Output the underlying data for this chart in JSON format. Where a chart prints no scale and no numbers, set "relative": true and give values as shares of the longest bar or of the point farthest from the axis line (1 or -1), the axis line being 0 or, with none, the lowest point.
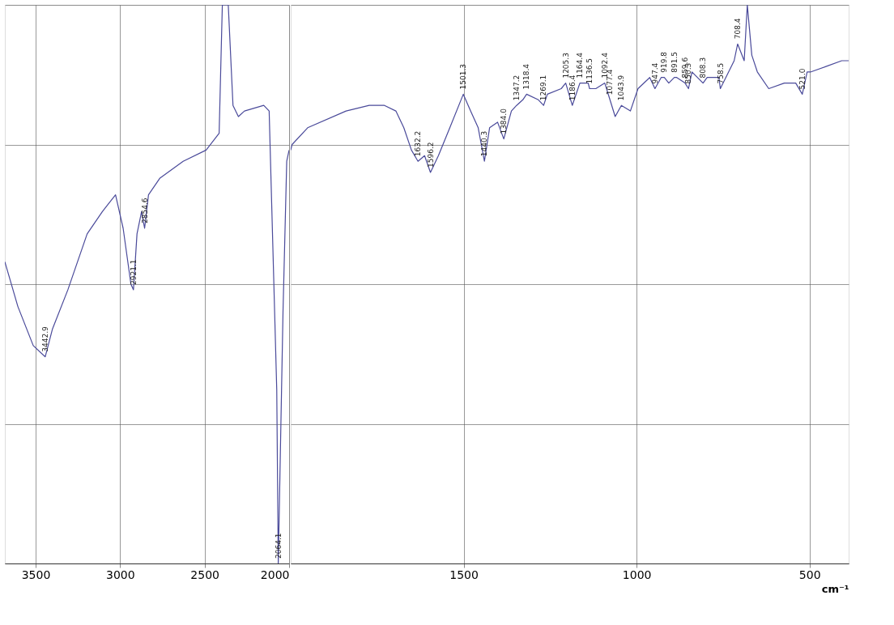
{
  "chart_data": [
    {
      "type": "line",
      "relative": true,
      "xlim": [
        3682,
        2000
      ],
      "xticks": [
        3500,
        3000,
        2500,
        2000
      ],
      "grid": true,
      "marker": "none",
      "line_style": "solid",
      "series": [
        {
          "color": "#4a4a9a",
          "x": [
            3682,
            3605,
            3514,
            3443,
            3400,
            3309,
            3195,
            3105,
            3027,
            2982,
            2936,
            2921,
            2900,
            2873,
            2855,
            2832,
            2764,
            2627,
            2491,
            2414,
            2395,
            2360,
            2332,
            2300,
            2264,
            2150,
            2118,
            2073,
            2064,
            2036,
            2014,
            2000
          ],
          "values": [
            0.54,
            0.46,
            0.39,
            0.37,
            0.42,
            0.49,
            0.59,
            0.63,
            0.66,
            0.6,
            0.5,
            0.49,
            0.59,
            0.63,
            0.6,
            0.66,
            0.69,
            0.72,
            0.74,
            0.77,
            1.0,
            1.0,
            0.82,
            0.8,
            0.81,
            0.82,
            0.81,
            0.31,
            0.0,
            0.45,
            0.72,
            0.74
          ]
        }
      ],
      "annotations": [
        {
          "text": "3442.9",
          "x": 3443,
          "y": 0.37
        },
        {
          "text": "2921.1",
          "x": 2921,
          "y": 0.49
        },
        {
          "text": "2854.6",
          "x": 2855,
          "y": 0.6
        },
        {
          "text": "2064.1",
          "x": 2064,
          "y": 0.0
        }
      ]
    },
    {
      "type": "line",
      "relative": true,
      "xlabel": "cm⁻¹",
      "xlim": [
        2000,
        387
      ],
      "xticks": [
        1500,
        1000,
        500
      ],
      "grid": true,
      "marker": "none",
      "line_style": "solid",
      "series": [
        {
          "color": "#4a4a9a",
          "x": [
            2000,
            1996,
            1951,
            1840,
            1773,
            1729,
            1696,
            1673,
            1651,
            1632,
            1613,
            1596,
            1573,
            1540,
            1501,
            1480,
            1458,
            1440,
            1425,
            1402,
            1384,
            1362,
            1347,
            1329,
            1318,
            1284,
            1269,
            1258,
            1218,
            1205,
            1186,
            1164,
            1140,
            1136,
            1118,
            1092,
            1077,
            1062,
            1044,
            1018,
            996,
            962,
            947,
            929,
            920,
            907,
            891,
            884,
            860,
            850,
            840,
            808,
            796,
            762,
            758,
            718,
            708,
            689,
            680,
            667,
            651,
            618,
            573,
            540,
            521,
            507,
            496,
            451,
            407,
            387
          ],
          "values": [
            0.74,
            0.75,
            0.78,
            0.81,
            0.82,
            0.82,
            0.81,
            0.78,
            0.74,
            0.72,
            0.73,
            0.7,
            0.73,
            0.78,
            0.84,
            0.81,
            0.78,
            0.72,
            0.78,
            0.79,
            0.76,
            0.81,
            0.82,
            0.83,
            0.84,
            0.83,
            0.82,
            0.84,
            0.85,
            0.86,
            0.82,
            0.86,
            0.86,
            0.85,
            0.85,
            0.86,
            0.83,
            0.8,
            0.82,
            0.81,
            0.85,
            0.87,
            0.85,
            0.87,
            0.87,
            0.86,
            0.87,
            0.87,
            0.86,
            0.85,
            0.88,
            0.86,
            0.87,
            0.87,
            0.85,
            0.9,
            0.93,
            0.9,
            1.0,
            0.91,
            0.88,
            0.85,
            0.86,
            0.86,
            0.84,
            0.88,
            0.88,
            0.89,
            0.9,
            0.9
          ]
        }
      ],
      "annotations": [
        {
          "text": "1632.2",
          "x": 1632,
          "y": 0.72
        },
        {
          "text": "1596.2",
          "x": 1596,
          "y": 0.7
        },
        {
          "text": "1501.3",
          "x": 1501,
          "y": 0.84
        },
        {
          "text": "1440.3",
          "x": 1440,
          "y": 0.72
        },
        {
          "text": "1384.0",
          "x": 1384,
          "y": 0.76
        },
        {
          "text": "1347.2",
          "x": 1347,
          "y": 0.82
        },
        {
          "text": "1318.4",
          "x": 1318,
          "y": 0.84
        },
        {
          "text": "1269.1",
          "x": 1269,
          "y": 0.82
        },
        {
          "text": "1205.3",
          "x": 1205,
          "y": 0.86
        },
        {
          "text": "1186.4",
          "x": 1186,
          "y": 0.82
        },
        {
          "text": "1164.4",
          "x": 1164,
          "y": 0.86
        },
        {
          "text": "1136.5",
          "x": 1136,
          "y": 0.85
        },
        {
          "text": "1092.4",
          "x": 1092,
          "y": 0.86
        },
        {
          "text": "1077.4",
          "x": 1077,
          "y": 0.83
        },
        {
          "text": "1043.9",
          "x": 1044,
          "y": 0.82
        },
        {
          "text": "947.4",
          "x": 947,
          "y": 0.85
        },
        {
          "text": "919.8",
          "x": 920,
          "y": 0.87
        },
        {
          "text": "891.5",
          "x": 891,
          "y": 0.87
        },
        {
          "text": "859.6",
          "x": 860,
          "y": 0.86
        },
        {
          "text": "850.3",
          "x": 850,
          "y": 0.85
        },
        {
          "text": "808.3",
          "x": 808,
          "y": 0.86
        },
        {
          "text": "758.5",
          "x": 758,
          "y": 0.85
        },
        {
          "text": "708.4",
          "x": 708,
          "y": 0.93
        },
        {
          "text": "521.0",
          "x": 521,
          "y": 0.84
        }
      ]
    }
  ]
}
